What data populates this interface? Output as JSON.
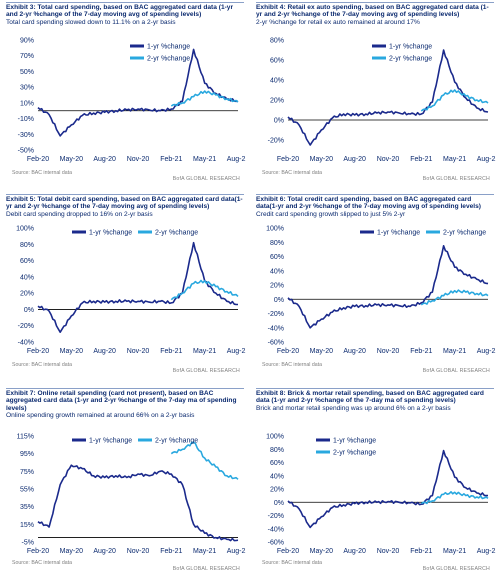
{
  "colors": {
    "yr1": "#1b2a8c",
    "yr2": "#29a8df",
    "axis": "#000000",
    "text": "#0b2a6f"
  },
  "x_ticks": [
    "Feb-20",
    "May-20",
    "Aug-20",
    "Nov-20",
    "Feb-21",
    "May-21",
    "Aug-21"
  ],
  "panels": [
    {
      "title": "Exhibit 3: Total card spending, based on BAC aggregated card data (1-yr and 2-yr %change of the 7-day moving avg of spending levels)",
      "subtitle": "Total card spending slowed down to 11.1% on a 2-yr basis",
      "source": "Source: BAC internal data",
      "brand": "BofA GLOBAL RESEARCH",
      "legend": [
        "1-yr %change",
        "2-yr %change"
      ]
    },
    {
      "title": "Exhibit 4: Retail ex auto spending, based on BAC aggregated card data (1-yr and 2-yr %change of the 7-day moving avg of spending levels)",
      "subtitle": "2-yr %change for retail ex auto remained at around 17%",
      "source": "Source: BAC internal data",
      "brand": "BofA GLOBAL RESEARCH",
      "legend": [
        "1-yr %change",
        "2-yr %change"
      ]
    },
    {
      "title": "Exhibit 5: Total debit card spending, based on BAC aggregated card data(1-yr and 2-yr %change of the 7-day moving avg of spending levels)",
      "subtitle": "Debit card spending dropped to 16% on 2-yr basis",
      "source": "Source: BAC internal data",
      "brand": "BofA GLOBAL RESEARCH",
      "legend": [
        "1-yr %change",
        "2-yr %change"
      ]
    },
    {
      "title": "Exhibit 6: Total credit card spending, based on BAC aggregated card data(1-yr and 2-yr %change of the 7-day moving avg of spending levels)",
      "subtitle": "Credit card spending growth slipped to just 5% 2-yr",
      "source": "Source: BAC internal data",
      "brand": "BofA GLOBAL RESEARCH",
      "legend": [
        "1-yr %change",
        "2-yr %change"
      ]
    },
    {
      "title": "Exhibit 7: Online retail spending (card not present), based on BAC aggregated card data (1-yr and 2-yr %change of the 7-day ma of spending levels)",
      "subtitle": "Online spending growth remained at around 66% on a 2-yr basis",
      "source": "Source: BAC internal data",
      "brand": "BofA GLOBAL RESEARCH",
      "legend": [
        "1-yr %change",
        "2-yr %change"
      ]
    },
    {
      "title": "Exhibit 8: Brick & mortar retail spending, based on BAC aggregated card data (1-yr and 2-yr %change of the 7-day ma of spending levels)",
      "subtitle": "Brick and mortar retail spending was up around 6% on a 2-yr basis",
      "source": "Source: BAC internal data",
      "brand": "BofA GLOBAL RESEARCH",
      "legend": [
        "1-yr %change",
        "2-yr %change"
      ]
    }
  ],
  "chart_data": [
    {
      "type": "line",
      "x_ticks": [
        "Feb-20",
        "May-20",
        "Aug-20",
        "Nov-20",
        "Feb-21",
        "May-21",
        "Aug-21"
      ],
      "y_ticks": [
        "-50%",
        "-30%",
        "-10%",
        "10%",
        "30%",
        "50%",
        "70%",
        "90%"
      ],
      "ylim": [
        -50,
        90
      ],
      "series": [
        {
          "name": "1-yr %change",
          "x": [
            "Feb-20",
            "Mar-20",
            "Apr-20",
            "May-20",
            "Jun-20",
            "Jul-20",
            "Aug-20",
            "Sep-20",
            "Oct-20",
            "Nov-20",
            "Dec-20",
            "Jan-21",
            "Feb-21",
            "Mar-21",
            "Apr-21",
            "May-21",
            "Jun-21",
            "Jul-21",
            "Aug-21"
          ],
          "values": [
            4,
            -5,
            -32,
            -18,
            -6,
            -3,
            -2,
            0,
            1,
            2,
            1,
            0,
            2,
            12,
            78,
            35,
            22,
            15,
            12
          ]
        },
        {
          "name": "2-yr %change",
          "x": [
            "Feb-21",
            "Mar-21",
            "Apr-21",
            "May-21",
            "Jun-21",
            "Jul-21",
            "Aug-21"
          ],
          "values": [
            6,
            10,
            18,
            25,
            20,
            15,
            11.1
          ]
        }
      ]
    },
    {
      "type": "line",
      "x_ticks": [
        "Feb-20",
        "May-20",
        "Aug-20",
        "Nov-20",
        "Feb-21",
        "May-21",
        "Aug-21"
      ],
      "y_ticks": [
        "-20%",
        "0%",
        "20%",
        "40%",
        "60%",
        "80%"
      ],
      "ylim": [
        -30,
        80
      ],
      "series": [
        {
          "name": "1-yr %change",
          "x": [
            "Feb-20",
            "Mar-20",
            "Apr-20",
            "May-20",
            "Jun-20",
            "Jul-20",
            "Aug-20",
            "Sep-20",
            "Oct-20",
            "Nov-20",
            "Dec-20",
            "Jan-21",
            "Feb-21",
            "Mar-21",
            "Apr-21",
            "May-21",
            "Jun-21",
            "Jul-21",
            "Aug-21"
          ],
          "values": [
            3,
            -5,
            -25,
            -10,
            2,
            6,
            5,
            6,
            7,
            8,
            7,
            6,
            6,
            18,
            70,
            38,
            22,
            12,
            8
          ]
        },
        {
          "name": "2-yr %change",
          "x": [
            "Feb-21",
            "Mar-21",
            "Apr-21",
            "May-21",
            "Jun-21",
            "Jul-21",
            "Aug-21"
          ],
          "values": [
            9,
            14,
            25,
            30,
            24,
            20,
            17
          ]
        }
      ]
    },
    {
      "type": "line",
      "x_ticks": [
        "Feb-20",
        "May-20",
        "Aug-20",
        "Nov-20",
        "Feb-21",
        "May-21",
        "Aug-21"
      ],
      "y_ticks": [
        "-40%",
        "-20%",
        "0%",
        "20%",
        "40%",
        "60%",
        "80%",
        "100%"
      ],
      "ylim": [
        -40,
        100
      ],
      "series": [
        {
          "name": "1-yr %change",
          "x": [
            "Feb-20",
            "Mar-20",
            "Apr-20",
            "May-20",
            "Jun-20",
            "Jul-20",
            "Aug-20",
            "Sep-20",
            "Oct-20",
            "Nov-20",
            "Dec-20",
            "Jan-21",
            "Feb-21",
            "Mar-21",
            "Apr-21",
            "May-21",
            "Jun-21",
            "Jul-21",
            "Aug-21"
          ],
          "values": [
            4,
            -2,
            -28,
            -8,
            8,
            10,
            9,
            10,
            10,
            10,
            9,
            10,
            8,
            20,
            82,
            35,
            20,
            10,
            6
          ]
        },
        {
          "name": "2-yr %change",
          "x": [
            "Feb-21",
            "Mar-21",
            "Apr-21",
            "May-21",
            "Jun-21",
            "Jul-21",
            "Aug-21"
          ],
          "values": [
            12,
            20,
            32,
            35,
            28,
            22,
            16
          ]
        }
      ]
    },
    {
      "type": "line",
      "x_ticks": [
        "Feb-20",
        "May-20",
        "Aug-20",
        "Nov-20",
        "Feb-21",
        "May-21",
        "Aug-21"
      ],
      "y_ticks": [
        "-60%",
        "-40%",
        "-20%",
        "0%",
        "20%",
        "40%",
        "60%",
        "80%",
        "100%"
      ],
      "ylim": [
        -60,
        100
      ],
      "series": [
        {
          "name": "1-yr %change",
          "x": [
            "Feb-20",
            "Mar-20",
            "Apr-20",
            "May-20",
            "Jun-20",
            "Jul-20",
            "Aug-20",
            "Sep-20",
            "Oct-20",
            "Nov-20",
            "Dec-20",
            "Jan-21",
            "Feb-21",
            "Mar-21",
            "Apr-21",
            "May-21",
            "Jun-21",
            "Jul-21",
            "Aug-21"
          ],
          "values": [
            2,
            -10,
            -40,
            -28,
            -18,
            -12,
            -10,
            -9,
            -8,
            -8,
            -9,
            -10,
            -5,
            10,
            75,
            45,
            35,
            28,
            22
          ]
        },
        {
          "name": "2-yr %change",
          "x": [
            "Feb-21",
            "Mar-21",
            "Apr-21",
            "May-21",
            "Jun-21",
            "Jul-21",
            "Aug-21"
          ],
          "values": [
            -8,
            -2,
            5,
            12,
            10,
            8,
            5
          ]
        }
      ]
    },
    {
      "type": "line",
      "x_ticks": [
        "Feb-20",
        "May-20",
        "Aug-20",
        "Nov-20",
        "Feb-21",
        "May-21",
        "Aug-21"
      ],
      "y_ticks": [
        "-5%",
        "15%",
        "35%",
        "55%",
        "75%",
        "95%",
        "115%"
      ],
      "ylim": [
        -5,
        115
      ],
      "series": [
        {
          "name": "1-yr %change",
          "x": [
            "Feb-20",
            "Mar-20",
            "Apr-20",
            "May-20",
            "Jun-20",
            "Jul-20",
            "Aug-20",
            "Sep-20",
            "Oct-20",
            "Nov-20",
            "Dec-20",
            "Jan-21",
            "Feb-21",
            "Mar-21",
            "Apr-21",
            "May-21",
            "Jun-21",
            "Jul-21",
            "Aug-21"
          ],
          "values": [
            18,
            12,
            60,
            82,
            78,
            70,
            68,
            70,
            68,
            72,
            70,
            75,
            72,
            60,
            15,
            5,
            0,
            -2,
            -3
          ]
        },
        {
          "name": "2-yr %change",
          "x": [
            "Feb-21",
            "Mar-21",
            "Apr-21",
            "May-21",
            "Jun-21",
            "Jul-21",
            "Aug-21"
          ],
          "values": [
            95,
            100,
            108,
            90,
            80,
            70,
            66
          ]
        }
      ]
    },
    {
      "type": "line",
      "x_ticks": [
        "Feb-20",
        "May-20",
        "Aug-20",
        "Nov-20",
        "Feb-21",
        "May-21",
        "Aug-21"
      ],
      "y_ticks": [
        "-60%",
        "-40%",
        "-20%",
        "0%",
        "20%",
        "40%",
        "60%",
        "80%",
        "100%"
      ],
      "ylim": [
        -60,
        100
      ],
      "series": [
        {
          "name": "1-yr %change",
          "x": [
            "Feb-20",
            "Mar-20",
            "Apr-20",
            "May-20",
            "Jun-20",
            "Jul-20",
            "Aug-20",
            "Sep-20",
            "Oct-20",
            "Nov-20",
            "Dec-20",
            "Jan-21",
            "Feb-21",
            "Mar-21",
            "Apr-21",
            "May-21",
            "Jun-21",
            "Jul-21",
            "Aug-21"
          ],
          "values": [
            2,
            -10,
            -38,
            -22,
            -8,
            -4,
            -2,
            0,
            0,
            1,
            0,
            -1,
            -3,
            10,
            78,
            38,
            22,
            14,
            10
          ]
        },
        {
          "name": "2-yr %change",
          "x": [
            "Feb-21",
            "Mar-21",
            "Apr-21",
            "May-21",
            "Jun-21",
            "Jul-21",
            "Aug-21"
          ],
          "values": [
            -2,
            2,
            12,
            15,
            10,
            8,
            6
          ]
        }
      ]
    }
  ]
}
